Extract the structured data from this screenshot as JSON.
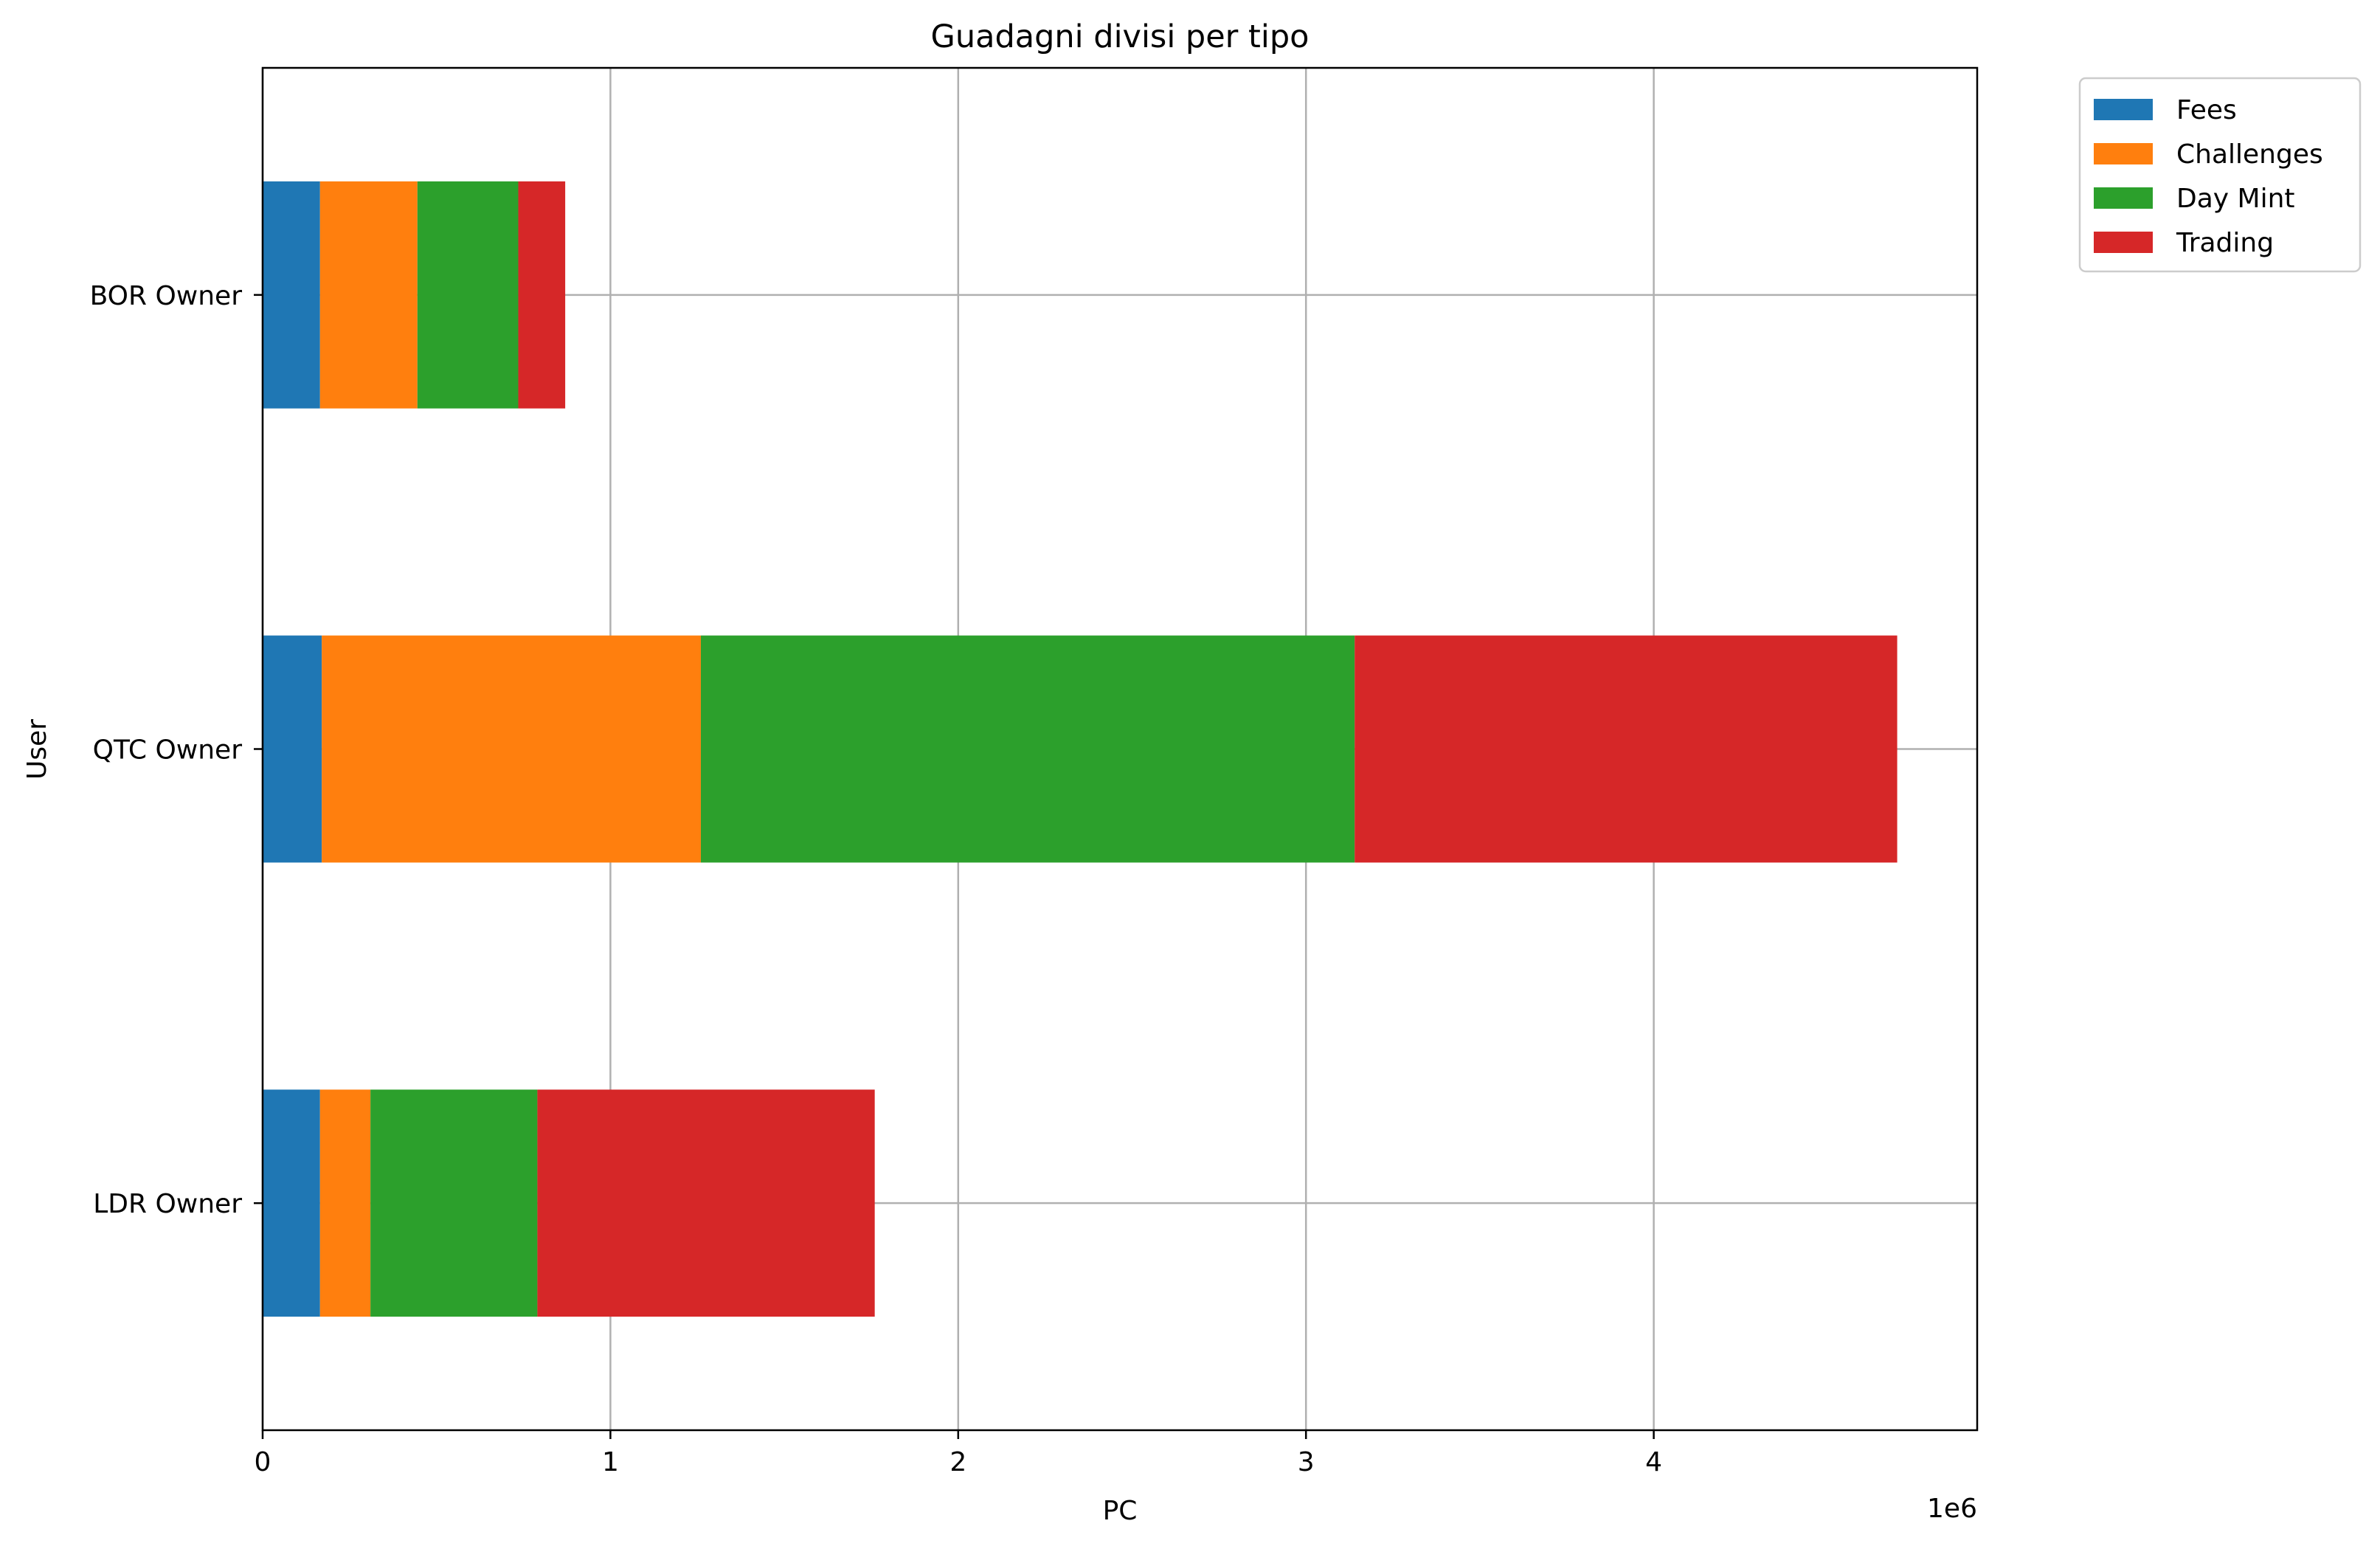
{
  "chart_data": {
    "type": "bar",
    "orientation": "horizontal",
    "stacked": true,
    "title": "Guadagni divisi per tipo",
    "xlabel": "PC",
    "ylabel": "User",
    "x_offset_label": "1e6",
    "xlim": [
      0,
      4930000
    ],
    "xticks": [
      0,
      1,
      2,
      3,
      4
    ],
    "categories": [
      "LDR Owner",
      "QTC Owner",
      "BOR Owner"
    ],
    "series": [
      {
        "name": "Fees",
        "color": "#1f77b4",
        "values": [
          165000,
          170000,
          165000
        ]
      },
      {
        "name": "Challenges",
        "color": "#ff7f0e",
        "values": [
          145000,
          1090000,
          280000
        ]
      },
      {
        "name": "Day Mint",
        "color": "#2ca02c",
        "values": [
          480000,
          1880000,
          290000
        ]
      },
      {
        "name": "Trading",
        "color": "#d62728",
        "values": [
          970000,
          1560000,
          135000
        ]
      }
    ],
    "grid": true,
    "legend_position": "outside top-right"
  }
}
